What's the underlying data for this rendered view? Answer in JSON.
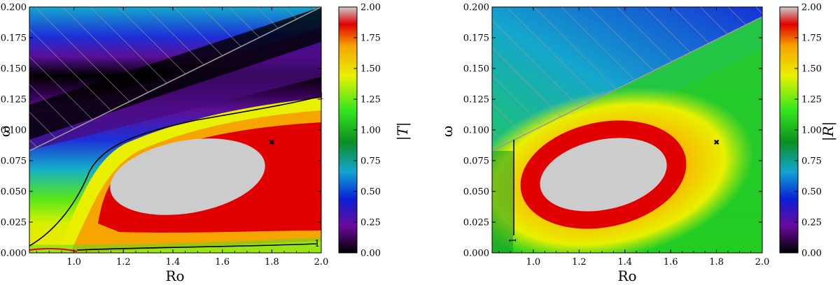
{
  "chart_data": [
    {
      "type": "heatmap",
      "xlabel": "Ro",
      "ylabel": "ω",
      "xlim": [
        0.82,
        2.0
      ],
      "ylim": [
        0.0,
        0.2
      ],
      "x_ticks": [
        "1.0",
        "1.2",
        "1.4",
        "1.6",
        "1.8",
        "2.0"
      ],
      "y_ticks": [
        "0.000",
        "0.025",
        "0.050",
        "0.075",
        "0.100",
        "0.125",
        "0.150",
        "0.175",
        "0.200"
      ],
      "colorbar": {
        "label": "|T|",
        "range": [
          0.0,
          2.0
        ],
        "ticks": [
          "0.00",
          "0.25",
          "0.50",
          "0.75",
          "1.00",
          "1.25",
          "1.50",
          "1.75",
          "2.00"
        ],
        "colormap": [
          "#000000",
          "#6a0a9e",
          "#0a1fd6",
          "#12a5d2",
          "#0c8e21",
          "#33e61c",
          "#e8f000",
          "#f6a500",
          "#e00000",
          "#cccccc"
        ]
      },
      "contour_level": "1",
      "marker": {
        "x": 1.8,
        "y": 0.09,
        "symbol": "✖"
      },
      "hatched_region": "above line from (0.82, 0.083) to (2.0, 0.2)"
    },
    {
      "type": "heatmap",
      "xlabel": "Ro",
      "ylabel": "ω",
      "xlim": [
        0.82,
        2.0
      ],
      "ylim": [
        0.0,
        0.2
      ],
      "x_ticks": [
        "1.0",
        "1.2",
        "1.4",
        "1.6",
        "1.8",
        "2.0"
      ],
      "y_ticks": [
        "0.000",
        "0.025",
        "0.050",
        "0.075",
        "0.100",
        "0.125",
        "0.150",
        "0.175",
        "0.200"
      ],
      "colorbar": {
        "label": "|R|",
        "range": [
          0.0,
          2.0
        ],
        "ticks": [
          "0.00",
          "0.25",
          "0.50",
          "0.75",
          "1.00",
          "1.25",
          "1.50",
          "1.75",
          "2.00"
        ],
        "colormap": [
          "#000000",
          "#6a0a9e",
          "#0a1fd6",
          "#12a5d2",
          "#0c8e21",
          "#33e61c",
          "#e8f000",
          "#f6a500",
          "#e00000",
          "#cccccc"
        ]
      },
      "contour_level": "1",
      "marker": {
        "x": 1.8,
        "y": 0.09,
        "symbol": "✖"
      },
      "hatched_region": "above line from (0.82, 0.083) to (2.0, 0.19)"
    }
  ]
}
